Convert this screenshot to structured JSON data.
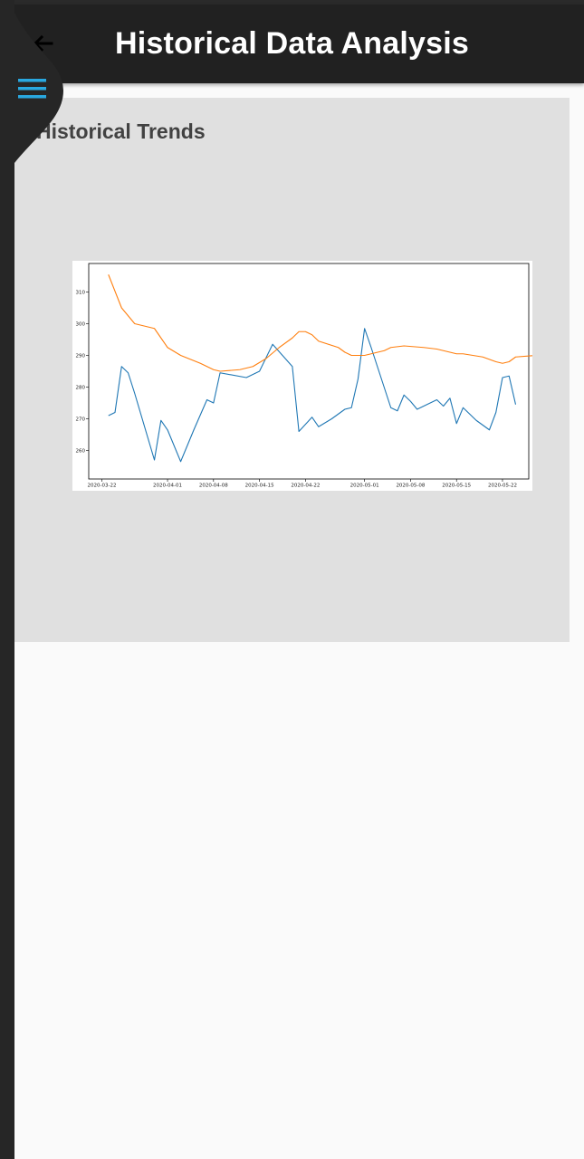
{
  "app_bar": {
    "title": "Historical Data Analysis",
    "back_icon": "arrow-back-icon",
    "menu_icon": "hamburger-menu-icon",
    "menu_color": "#29a8e0"
  },
  "card": {
    "title": "Historical Trends"
  },
  "chart_data": {
    "type": "line",
    "title": "",
    "xlabel": "",
    "ylabel": "",
    "xlim": [
      "2020-03-20",
      "2020-05-26"
    ],
    "ylim": [
      251,
      319
    ],
    "x_ticks": [
      "2020-03-22",
      "2020-04-01",
      "2020-04-08",
      "2020-04-15",
      "2020-04-22",
      "2020-05-01",
      "2020-05-08",
      "2020-05-15",
      "2020-05-22"
    ],
    "y_ticks": [
      260,
      270,
      280,
      290,
      300,
      310
    ],
    "grid": false,
    "legend": "none",
    "series": [
      {
        "color": "#1f77b4",
        "points": [
          [
            "2020-03-23",
            271
          ],
          [
            "2020-03-24",
            272
          ],
          [
            "2020-03-25",
            286.5
          ],
          [
            "2020-03-26",
            284.5
          ],
          [
            "2020-03-27",
            278
          ],
          [
            "2020-03-28",
            271
          ],
          [
            "2020-03-30",
            257
          ],
          [
            "2020-03-31",
            269.5
          ],
          [
            "2020-04-01",
            266.5
          ],
          [
            "2020-04-03",
            256.5
          ],
          [
            "2020-04-04",
            261.5
          ],
          [
            "2020-04-05",
            266.5
          ],
          [
            "2020-04-07",
            276
          ],
          [
            "2020-04-08",
            275
          ],
          [
            "2020-04-09",
            284.5
          ],
          [
            "2020-04-13",
            283
          ],
          [
            "2020-04-15",
            285
          ],
          [
            "2020-04-17",
            293.5
          ],
          [
            "2020-04-20",
            286.5
          ],
          [
            "2020-04-21",
            266
          ],
          [
            "2020-04-23",
            270.5
          ],
          [
            "2020-04-24",
            267.5
          ],
          [
            "2020-04-26",
            270
          ],
          [
            "2020-04-28",
            273
          ],
          [
            "2020-04-29",
            273.5
          ],
          [
            "2020-04-30",
            282.5
          ],
          [
            "2020-05-01",
            298.5
          ],
          [
            "2020-05-02",
            292.5
          ],
          [
            "2020-05-05",
            273.5
          ],
          [
            "2020-05-06",
            272.5
          ],
          [
            "2020-05-07",
            277.5
          ],
          [
            "2020-05-08",
            275.5
          ],
          [
            "2020-05-09",
            273
          ],
          [
            "2020-05-12",
            276
          ],
          [
            "2020-05-13",
            274
          ],
          [
            "2020-05-14",
            276.5
          ],
          [
            "2020-05-15",
            268.5
          ],
          [
            "2020-05-16",
            273.5
          ],
          [
            "2020-05-18",
            269.5
          ],
          [
            "2020-05-20",
            266.5
          ],
          [
            "2020-05-21",
            272
          ],
          [
            "2020-05-22",
            283
          ],
          [
            "2020-05-23",
            283.5
          ],
          [
            "2020-05-24",
            274.5
          ]
        ]
      },
      {
        "color": "#ff7f0e",
        "points": [
          [
            "2020-03-23",
            315.5
          ],
          [
            "2020-03-25",
            305
          ],
          [
            "2020-03-27",
            300
          ],
          [
            "2020-03-30",
            298.5
          ],
          [
            "2020-04-01",
            292.5
          ],
          [
            "2020-04-03",
            290
          ],
          [
            "2020-04-06",
            287.5
          ],
          [
            "2020-04-08",
            285.5
          ],
          [
            "2020-04-09",
            285
          ],
          [
            "2020-04-12",
            285.5
          ],
          [
            "2020-04-14",
            286.5
          ],
          [
            "2020-04-16",
            289
          ],
          [
            "2020-04-18",
            292.5
          ],
          [
            "2020-04-20",
            295.5
          ],
          [
            "2020-04-21",
            297.5
          ],
          [
            "2020-04-22",
            297.5
          ],
          [
            "2020-04-23",
            296.5
          ],
          [
            "2020-04-24",
            294.5
          ],
          [
            "2020-04-27",
            292.5
          ],
          [
            "2020-04-28",
            291
          ],
          [
            "2020-04-29",
            290
          ],
          [
            "2020-05-01",
            290
          ],
          [
            "2020-05-04",
            291.5
          ],
          [
            "2020-05-05",
            292.5
          ],
          [
            "2020-05-07",
            293
          ],
          [
            "2020-05-10",
            292.5
          ],
          [
            "2020-05-12",
            292
          ],
          [
            "2020-05-14",
            291
          ],
          [
            "2020-05-15",
            290.5
          ],
          [
            "2020-05-16",
            290.5
          ],
          [
            "2020-05-19",
            289.5
          ],
          [
            "2020-05-21",
            288
          ],
          [
            "2020-05-22",
            287.5
          ],
          [
            "2020-05-23",
            288
          ],
          [
            "2020-05-24",
            289.5
          ],
          [
            "2020-05-27",
            290
          ]
        ]
      }
    ]
  }
}
